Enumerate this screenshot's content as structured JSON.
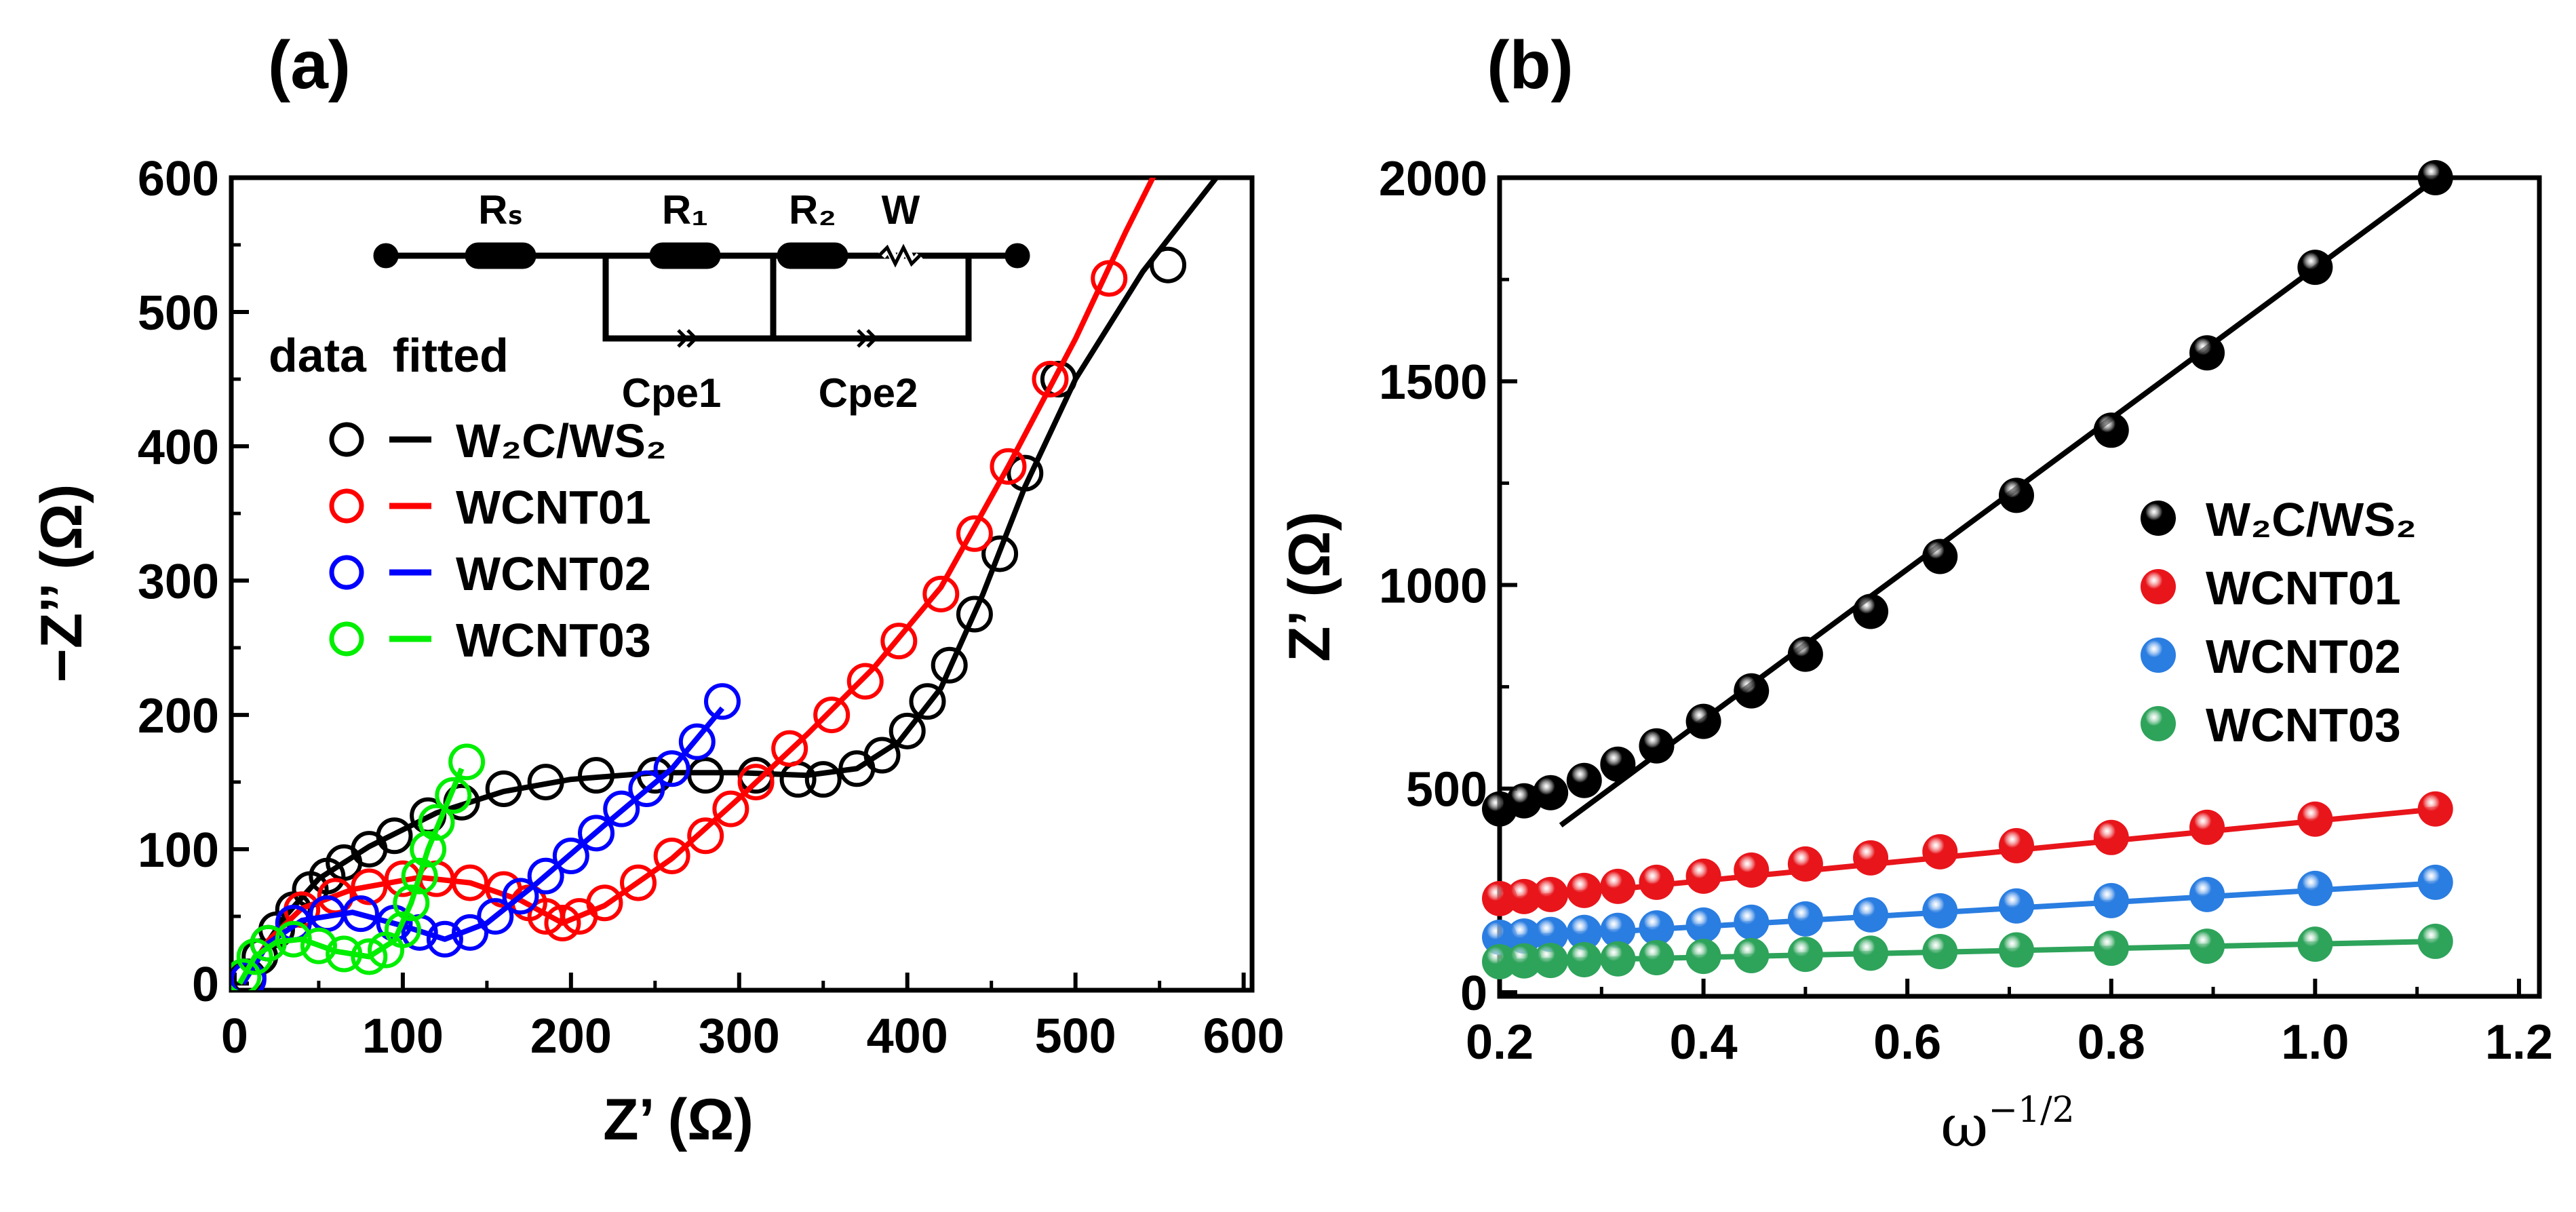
{
  "chart_data": [
    {
      "panel": "(a)",
      "type": "scatter",
      "xlabel": "Z’ (Ω)",
      "ylabel": "−Z’’ (Ω)",
      "xlim": [
        -2,
        605
      ],
      "ylim": [
        -5,
        600
      ],
      "xticks": [
        0,
        100,
        200,
        300,
        400,
        500,
        600
      ],
      "yticks": [
        0,
        100,
        200,
        300,
        400,
        500,
        600
      ],
      "grid": false,
      "legend": {
        "position": "left",
        "header": "data  fitted"
      },
      "circuit": {
        "labels": [
          "Rₛ",
          "R₁",
          "R₂",
          "W",
          "Cpe1",
          "Cpe2"
        ]
      },
      "series": [
        {
          "name": "W₂C/WS₂",
          "color": "#000000",
          "data": [
            [
              8,
              5
            ],
            [
              15,
              20
            ],
            [
              25,
              40
            ],
            [
              35,
              55
            ],
            [
              45,
              70
            ],
            [
              55,
              80
            ],
            [
              65,
              90
            ],
            [
              80,
              100
            ],
            [
              95,
              110
            ],
            [
              115,
              125
            ],
            [
              135,
              135
            ],
            [
              160,
              145
            ],
            [
              185,
              150
            ],
            [
              215,
              155
            ],
            [
              250,
              155
            ],
            [
              280,
              155
            ],
            [
              310,
              155
            ],
            [
              335,
              152
            ],
            [
              350,
              152
            ],
            [
              370,
              160
            ],
            [
              385,
              170
            ],
            [
              400,
              188
            ],
            [
              412,
              210
            ],
            [
              425,
              237
            ],
            [
              440,
              275
            ],
            [
              455,
              320
            ],
            [
              470,
              380
            ],
            [
              490,
              450
            ],
            [
              555,
              535
            ]
          ],
          "fit": [
            [
              5,
              0
            ],
            [
              15,
              22
            ],
            [
              30,
              50
            ],
            [
              50,
              78
            ],
            [
              80,
              102
            ],
            [
              120,
              127
            ],
            [
              160,
              143
            ],
            [
              200,
              152
            ],
            [
              250,
              157
            ],
            [
              300,
              157
            ],
            [
              340,
              155
            ],
            [
              370,
              160
            ],
            [
              395,
              180
            ],
            [
              420,
              220
            ],
            [
              445,
              290
            ],
            [
              470,
              370
            ],
            [
              500,
              450
            ],
            [
              540,
              530
            ],
            [
              590,
              610
            ]
          ]
        },
        {
          "name": "WCNT01",
          "color": "#ff0000",
          "data": [
            [
              8,
              3
            ],
            [
              20,
              30
            ],
            [
              40,
              55
            ],
            [
              60,
              65
            ],
            [
              80,
              72
            ],
            [
              100,
              78
            ],
            [
              120,
              78
            ],
            [
              140,
              75
            ],
            [
              160,
              70
            ],
            [
              175,
              60
            ],
            [
              185,
              50
            ],
            [
              195,
              45
            ],
            [
              205,
              50
            ],
            [
              220,
              60
            ],
            [
              240,
              75
            ],
            [
              260,
              95
            ],
            [
              280,
              110
            ],
            [
              295,
              130
            ],
            [
              310,
              150
            ],
            [
              330,
              175
            ],
            [
              355,
              200
            ],
            [
              375,
              225
            ],
            [
              395,
              255
            ],
            [
              420,
              290
            ],
            [
              440,
              335
            ],
            [
              460,
              385
            ],
            [
              485,
              450
            ],
            [
              520,
              525
            ]
          ],
          "fit": [
            [
              5,
              0
            ],
            [
              20,
              32
            ],
            [
              40,
              56
            ],
            [
              70,
              70
            ],
            [
              110,
              79
            ],
            [
              140,
              75
            ],
            [
              170,
              62
            ],
            [
              195,
              45
            ],
            [
              220,
              58
            ],
            [
              260,
              93
            ],
            [
              300,
              138
            ],
            [
              340,
              185
            ],
            [
              380,
              235
            ],
            [
              420,
              295
            ],
            [
              460,
              385
            ],
            [
              500,
              480
            ],
            [
              530,
              560
            ],
            [
              550,
              610
            ]
          ]
        },
        {
          "name": "WCNT02",
          "color": "#0000ff",
          "data": [
            [
              8,
              3
            ],
            [
              20,
              30
            ],
            [
              35,
              45
            ],
            [
              55,
              52
            ],
            [
              75,
              52
            ],
            [
              95,
              45
            ],
            [
              110,
              38
            ],
            [
              125,
              33
            ],
            [
              140,
              38
            ],
            [
              155,
              50
            ],
            [
              170,
              65
            ],
            [
              185,
              80
            ],
            [
              200,
              95
            ],
            [
              215,
              112
            ],
            [
              230,
              130
            ],
            [
              245,
              145
            ],
            [
              260,
              160
            ],
            [
              275,
              180
            ],
            [
              290,
              210
            ]
          ],
          "fit": [
            [
              5,
              0
            ],
            [
              20,
              30
            ],
            [
              40,
              47
            ],
            [
              70,
              53
            ],
            [
              100,
              43
            ],
            [
              125,
              33
            ],
            [
              150,
              45
            ],
            [
              180,
              75
            ],
            [
              220,
              118
            ],
            [
              260,
              160
            ],
            [
              290,
              205
            ]
          ]
        },
        {
          "name": "WCNT03",
          "color": "#00ee00",
          "data": [
            [
              5,
              5
            ],
            [
              12,
              20
            ],
            [
              20,
              30
            ],
            [
              35,
              33
            ],
            [
              50,
              28
            ],
            [
              65,
              22
            ],
            [
              80,
              20
            ],
            [
              90,
              25
            ],
            [
              100,
              40
            ],
            [
              105,
              60
            ],
            [
              110,
              80
            ],
            [
              115,
              100
            ],
            [
              120,
              120
            ],
            [
              130,
              140
            ],
            [
              138,
              165
            ]
          ],
          "fit": [
            [
              3,
              0
            ],
            [
              12,
              20
            ],
            [
              25,
              31
            ],
            [
              40,
              33
            ],
            [
              60,
              24
            ],
            [
              80,
              20
            ],
            [
              95,
              32
            ],
            [
              105,
              60
            ],
            [
              115,
              100
            ],
            [
              125,
              130
            ],
            [
              135,
              160
            ]
          ]
        }
      ]
    },
    {
      "panel": "(b)",
      "type": "scatter",
      "xlabel_base": "ω",
      "xlabel_sup": "−1/2",
      "ylabel": "Z’ (Ω)",
      "xlim": [
        0.2,
        1.22
      ],
      "ylim": [
        -10,
        2000
      ],
      "xticks": [
        "0.2",
        "0.4",
        "0.6",
        "0.8",
        "1.0",
        "1.2"
      ],
      "yticks": [
        "0",
        "500",
        "1000",
        "1500",
        "2000"
      ],
      "grid": false,
      "legend": {
        "position": "right"
      },
      "x": [
        0.2,
        0.224,
        0.25,
        0.283,
        0.316,
        0.354,
        0.4,
        0.447,
        0.5,
        0.564,
        0.632,
        0.707,
        0.8,
        0.894,
        1.0,
        1.118
      ],
      "series": [
        {
          "name": "W₂C/WS₂",
          "color": "#000000",
          "values": [
            450,
            470,
            490,
            520,
            560,
            605,
            665,
            740,
            830,
            935,
            1070,
            1220,
            1380,
            1570,
            1780,
            2000
          ],
          "fit": [
            [
              0.26,
              410
            ],
            [
              1.12,
              2000
            ]
          ]
        },
        {
          "name": "WCNT01",
          "color": "#e8151b",
          "values": [
            230,
            235,
            240,
            250,
            260,
            270,
            285,
            300,
            315,
            330,
            345,
            360,
            380,
            405,
            425,
            450
          ],
          "fit": [
            [
              0.2,
              225
            ],
            [
              1.12,
              450
            ]
          ]
        },
        {
          "name": "WCNT02",
          "color": "#2a7de1",
          "values": [
            135,
            138,
            142,
            147,
            152,
            158,
            165,
            172,
            180,
            190,
            200,
            212,
            225,
            240,
            255,
            270
          ],
          "fit": [
            [
              0.2,
              132
            ],
            [
              1.12,
              268
            ]
          ]
        },
        {
          "name": "WCNT03",
          "color": "#2ea35a",
          "values": [
            75,
            77,
            78,
            80,
            82,
            85,
            88,
            90,
            93,
            96,
            100,
            104,
            108,
            113,
            118,
            125
          ],
          "fit": [
            [
              0.2,
              75
            ],
            [
              1.12,
              125
            ]
          ]
        }
      ]
    }
  ]
}
